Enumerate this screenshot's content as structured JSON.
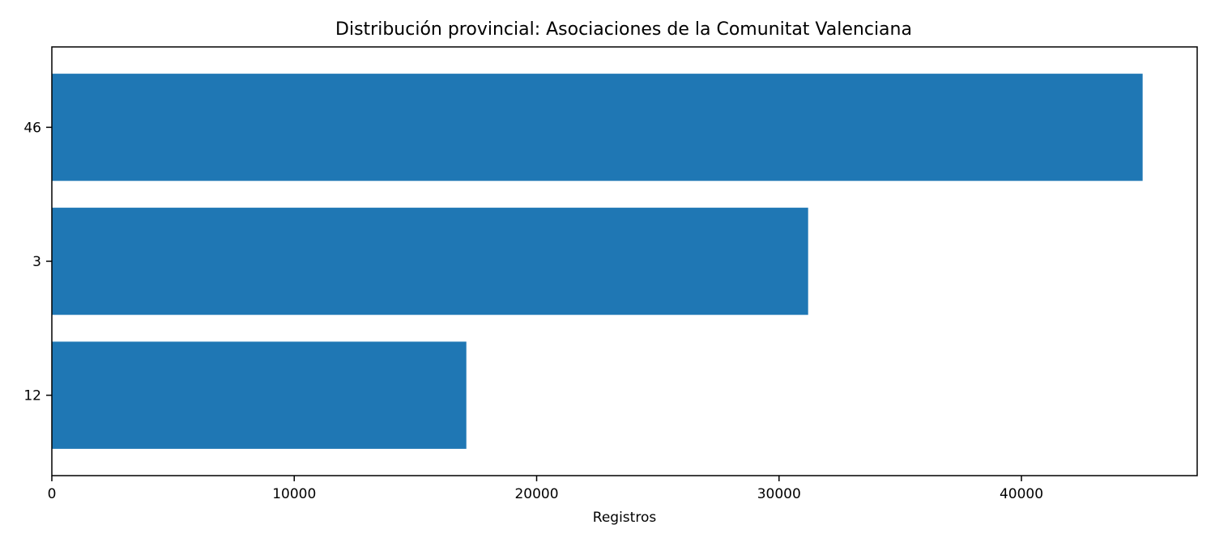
{
  "chart_data": {
    "type": "bar",
    "orientation": "horizontal",
    "title": "Distribución provincial: Asociaciones de la Comunitat Valenciana",
    "xlabel": "Registros",
    "ylabel": "",
    "categories": [
      "46",
      "3",
      "12"
    ],
    "values": [
      45000,
      31200,
      17100
    ],
    "xlim": [
      0,
      47250
    ],
    "xticks": [
      0,
      10000,
      20000,
      30000,
      40000
    ],
    "xtick_labels": [
      "0",
      "10000",
      "20000",
      "30000",
      "40000"
    ],
    "bar_color": "#1f77b4",
    "grid": false,
    "legend": "none"
  }
}
